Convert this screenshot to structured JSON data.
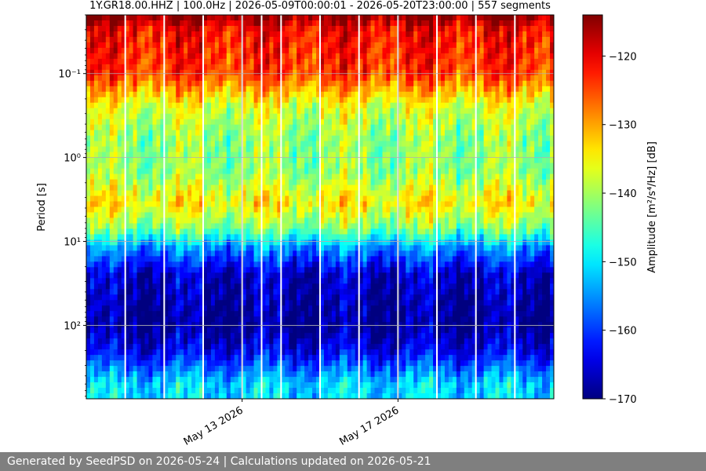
{
  "chart_data": {
    "type": "heatmap",
    "title": "1Y.GR18.00.HHZ | 100.0Hz | 2026-05-09T00:00:01 - 2026-05-20T23:00:00 | 557 segments",
    "ylabel": "Period [s]",
    "y_scale": "log",
    "y_inverted": true,
    "ylim": [
      0.02,
      750
    ],
    "y_ticks": [
      0.1,
      1,
      10,
      100
    ],
    "y_tick_labels": [
      "10⁻¹",
      "10⁰",
      "10¹",
      "10²"
    ],
    "x_range": [
      "2026-05-09",
      "2026-05-21"
    ],
    "x_ticks": [
      "2026-05-13",
      "2026-05-17"
    ],
    "x_tick_labels": [
      "May 13 2026",
      "May 17 2026"
    ],
    "data_gaps": [
      "2026-05-10",
      "2026-05-11",
      "2026-05-12",
      "2026-05-13",
      "2026-05-13T12:00",
      "2026-05-14",
      "2026-05-15",
      "2026-05-16",
      "2026-05-17",
      "2026-05-18",
      "2026-05-19",
      "2026-05-20"
    ],
    "grid": true,
    "colormap": "jet",
    "colorbar": {
      "label": "Amplitude [m²/s⁴/Hz] [dB]",
      "range": [
        -170,
        -114
      ],
      "ticks": [
        -120,
        -130,
        -140,
        -150,
        -160,
        -170
      ]
    },
    "value_profile_by_period": [
      {
        "period": 0.02,
        "value": -114
      },
      {
        "period": 0.03,
        "value": -121
      },
      {
        "period": 0.1,
        "value": -124
      },
      {
        "period": 0.25,
        "value": -137
      },
      {
        "period": 0.6,
        "value": -141
      },
      {
        "period": 1.5,
        "value": -141
      },
      {
        "period": 3.5,
        "value": -134
      },
      {
        "period": 7,
        "value": -142
      },
      {
        "period": 12,
        "value": -155
      },
      {
        "period": 25,
        "value": -166
      },
      {
        "period": 100,
        "value": -169
      },
      {
        "period": 200,
        "value": -164
      },
      {
        "period": 500,
        "value": -151
      }
    ],
    "colors": {
      "gridline": "#b0b0b0",
      "gap_line": "#ffffff"
    }
  },
  "footer": {
    "text": "Generated by SeedPSD on 2026-05-24 | Calculations updated on 2026-05-21"
  }
}
